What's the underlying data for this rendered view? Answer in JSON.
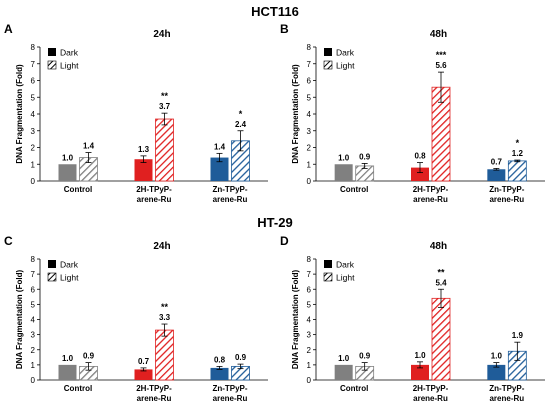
{
  "sections": [
    "HCT116",
    "HT-29"
  ],
  "colors": {
    "control": "#808080",
    "2h": "#e02020",
    "zn": "#1f5c99",
    "legend_dark": "#000000"
  },
  "chart_data": [
    {
      "panel": "A",
      "section": "HCT116",
      "type": "bar",
      "title": "24h",
      "ylabel": "DNA Fragmentation (Fold)",
      "ylim": [
        0,
        8
      ],
      "categories": [
        "Control",
        "2H-TPyP-\narene-Ru",
        "Zn-TPyP-\narene-Ru"
      ],
      "legend": [
        "Dark",
        "Light"
      ],
      "legend_position": "top-left",
      "series": [
        {
          "name": "Dark",
          "pattern": "solid",
          "values": [
            1.0,
            1.3,
            1.4
          ],
          "errors": [
            0.0,
            0.2,
            0.25
          ],
          "labels": [
            "1.0",
            "1.3",
            "1.4"
          ],
          "sig": [
            "",
            "",
            ""
          ]
        },
        {
          "name": "Light",
          "pattern": "hatched",
          "values": [
            1.4,
            3.7,
            2.4
          ],
          "errors": [
            0.3,
            0.35,
            0.6
          ],
          "labels": [
            "1.4",
            "3.7",
            "2.4"
          ],
          "sig": [
            "",
            "**",
            "*"
          ]
        }
      ]
    },
    {
      "panel": "B",
      "section": "HCT116",
      "type": "bar",
      "title": "48h",
      "ylabel": "DNA Fragmentation (Fold)",
      "ylim": [
        0,
        8
      ],
      "categories": [
        "Control",
        "2H-TPyP-\narene-Ru",
        "Zn-TPyP-\narene-Ru"
      ],
      "legend": [
        "Dark",
        "Light"
      ],
      "legend_position": "top-left",
      "series": [
        {
          "name": "Dark",
          "pattern": "solid",
          "values": [
            1.0,
            0.8,
            0.7
          ],
          "errors": [
            0.0,
            0.3,
            0.05
          ],
          "labels": [
            "1.0",
            "0.8",
            "0.7"
          ],
          "sig": [
            "",
            "",
            ""
          ]
        },
        {
          "name": "Light",
          "pattern": "hatched",
          "values": [
            0.9,
            5.6,
            1.2
          ],
          "errors": [
            0.15,
            0.9,
            0.05
          ],
          "labels": [
            "0.9",
            "5.6",
            "1.2"
          ],
          "sig": [
            "",
            "***",
            "*"
          ]
        }
      ]
    },
    {
      "panel": "C",
      "section": "HT-29",
      "type": "bar",
      "title": "24h",
      "ylabel": "DNA Fragmentation (Fold)",
      "ylim": [
        0,
        8
      ],
      "categories": [
        "Control",
        "2H-TPyP-\narene-Ru",
        "Zn-TPyP-\narene-Ru"
      ],
      "legend": [
        "Dark",
        "Light"
      ],
      "legend_position": "top-left",
      "series": [
        {
          "name": "Dark",
          "pattern": "solid",
          "values": [
            1.0,
            0.7,
            0.8
          ],
          "errors": [
            0.0,
            0.1,
            0.1
          ],
          "labels": [
            "1.0",
            "0.7",
            "0.8"
          ],
          "sig": [
            "",
            "",
            ""
          ]
        },
        {
          "name": "Light",
          "pattern": "hatched",
          "values": [
            0.9,
            3.3,
            0.9
          ],
          "errors": [
            0.25,
            0.4,
            0.15
          ],
          "labels": [
            "0.9",
            "3.3",
            "0.9"
          ],
          "sig": [
            "",
            "**",
            ""
          ]
        }
      ]
    },
    {
      "panel": "D",
      "section": "HT-29",
      "type": "bar",
      "title": "48h",
      "ylabel": "DNA Fragmentation (Fold)",
      "ylim": [
        0,
        8
      ],
      "categories": [
        "Control",
        "2H-TPyP-\narene-Ru",
        "Zn-TPyP-\narene-Ru"
      ],
      "legend": [
        "Dark",
        "Light"
      ],
      "legend_position": "top-left",
      "series": [
        {
          "name": "Dark",
          "pattern": "solid",
          "values": [
            1.0,
            1.0,
            1.0
          ],
          "errors": [
            0.0,
            0.2,
            0.15
          ],
          "labels": [
            "1.0",
            "1.0",
            "1.0"
          ],
          "sig": [
            "",
            "",
            ""
          ]
        },
        {
          "name": "Light",
          "pattern": "hatched",
          "values": [
            0.9,
            5.4,
            1.9
          ],
          "errors": [
            0.25,
            0.6,
            0.6
          ],
          "labels": [
            "0.9",
            "5.4",
            "1.9"
          ],
          "sig": [
            "",
            "**",
            ""
          ]
        }
      ]
    }
  ]
}
